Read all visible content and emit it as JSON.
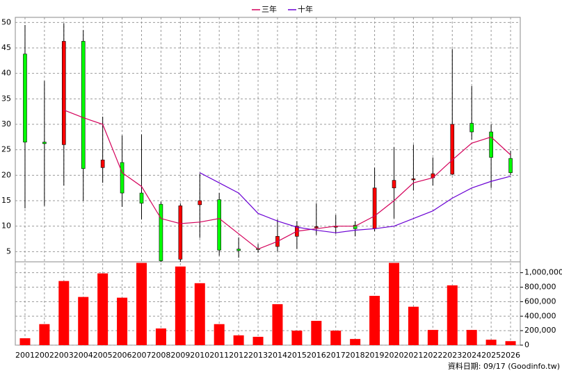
{
  "chart_data": {
    "type": "candlestick",
    "categories": [
      "2001",
      "2002",
      "2003",
      "2004",
      "2005",
      "2006",
      "2007",
      "2008",
      "2009",
      "2010",
      "2011",
      "2012",
      "2013",
      "2014",
      "2015",
      "2016",
      "2017",
      "2018",
      "2019",
      "2020",
      "2021",
      "2022",
      "2023",
      "2024",
      "2025",
      "2026"
    ],
    "open": [
      43.8,
      26.5,
      26,
      46.3,
      21.5,
      22.5,
      16.5,
      14.3,
      3.5,
      14.2,
      15.2,
      5.5,
      5.6,
      6,
      8,
      9.8,
      9.9,
      10.2,
      9.5,
      17.5,
      19.2,
      19.5,
      20.2,
      30.2,
      28.5,
      23.3
    ],
    "high": [
      49.5,
      38.5,
      49.8,
      48.5,
      31.5,
      27.8,
      28,
      14.8,
      14.5,
      20.3,
      16.5,
      7.8,
      6.5,
      11.3,
      11,
      14.5,
      12.2,
      11,
      21.5,
      25.5,
      26,
      23.5,
      44.8,
      37.5,
      30,
      24.8
    ],
    "low": [
      13.5,
      14,
      18,
      15,
      18.5,
      13.8,
      11.3,
      3,
      3,
      7.7,
      4.2,
      3.8,
      4.8,
      5,
      5.5,
      8.3,
      8.5,
      8,
      9,
      11.5,
      17,
      18,
      20,
      27,
      17.5,
      20
    ],
    "close": [
      26.5,
      26.2,
      46.3,
      21.3,
      23,
      16.5,
      14.5,
      3.2,
      14,
      15,
      5.3,
      5.2,
      5.4,
      8,
      10,
      9.9,
      10,
      9.5,
      17.5,
      19,
      19.3,
      20.3,
      30,
      28.5,
      23.5,
      20.5
    ],
    "up_color": "#ff0000",
    "down_color": "#00ff00",
    "ylim": [
      3,
      51
    ],
    "yticks": [
      5,
      10,
      15,
      20,
      25,
      30,
      35,
      40,
      45,
      50
    ],
    "grid": true,
    "series": [
      {
        "name": "三年",
        "color": "#d4005a",
        "values": [
          null,
          null,
          32.8,
          31.3,
          30,
          20.5,
          17.8,
          11.5,
          10.5,
          10.8,
          11.5,
          8.5,
          5.5,
          7,
          9,
          9.5,
          10,
          10,
          12,
          15,
          18.5,
          19.5,
          23,
          26.3,
          27.5,
          24
        ]
      },
      {
        "name": "十年",
        "color": "#6a00d4",
        "values": [
          null,
          null,
          null,
          null,
          null,
          null,
          null,
          null,
          null,
          20.5,
          18.5,
          16.5,
          12.5,
          11,
          9.8,
          9.2,
          8.7,
          9.2,
          9.5,
          10,
          11.5,
          13,
          15.5,
          17.5,
          18.8,
          19.8
        ]
      }
    ],
    "volume": {
      "color": "#ff0000",
      "values": [
        95000,
        290000,
        885000,
        665000,
        990000,
        655000,
        1135000,
        230000,
        1085000,
        855000,
        290000,
        135000,
        115000,
        565000,
        200000,
        335000,
        200000,
        85000,
        680000,
        1135000,
        530000,
        210000,
        825000,
        210000,
        75000,
        55000
      ],
      "ylim": [
        0,
        1150000
      ],
      "yticks": [
        0,
        {
          "value": 200000,
          "label": "200,000"
        },
        {
          "value": 400000,
          "label": "400,000"
        },
        {
          "value": 600000,
          "label": "600,000"
        },
        {
          "value": 800000,
          "label": "800,000"
        },
        {
          "value": 1000000,
          "label": "1,000,000"
        }
      ]
    },
    "source": "資料日期: 09/17 (Goodinfo.tw)"
  }
}
